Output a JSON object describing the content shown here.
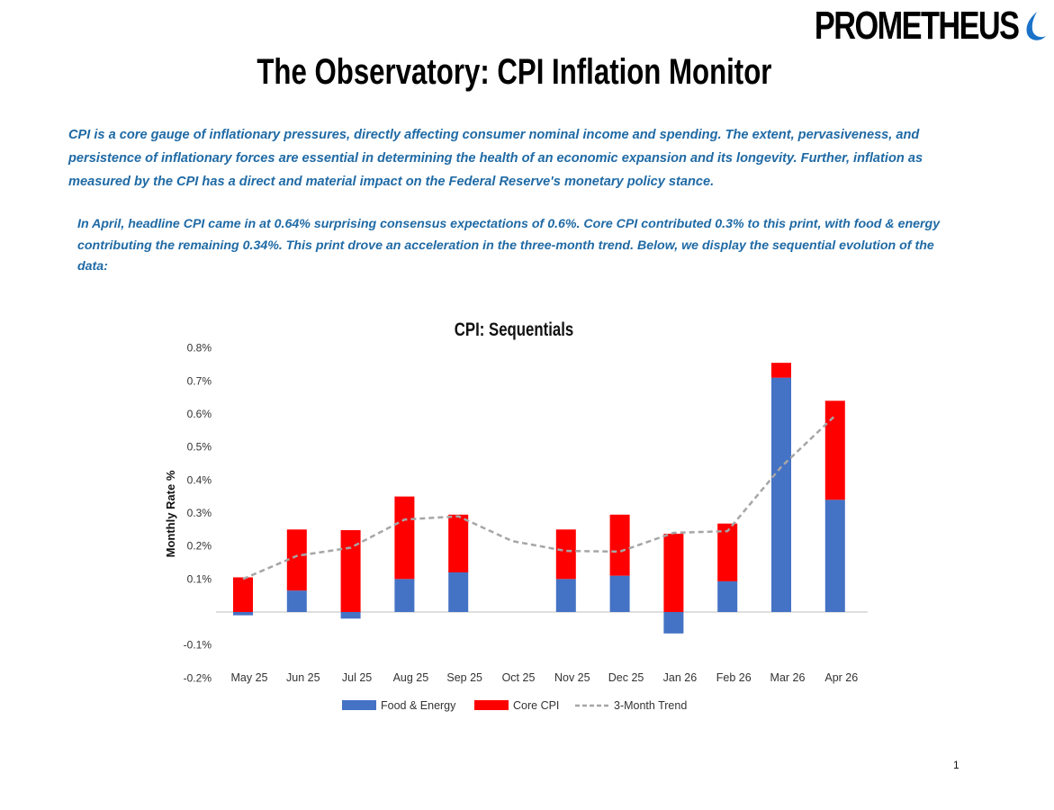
{
  "brand": {
    "name": "PROMETHEUS",
    "accent": "#1a73c8"
  },
  "title": "The Observatory: CPI Inflation Monitor",
  "intro": "CPI is a core gauge of inflationary pressures, directly affecting consumer nominal income and spending. The extent, pervasiveness, and persistence of inflationary forces are essential in determining the health of an economic expansion and its longevity. Further, inflation as measured by the CPI has a direct and material impact on the Federal Reserve's monetary policy stance.",
  "summary": "In April, headline CPI came in at 0.64% surprising  consensus expectations of 0.6%. Core CPI contributed 0.3% to this print, with food & energy contributing the remaining 0.34%. This print drove an acceleration in the three-month trend. Below, we display the sequential evolution of the data:",
  "text_color": "#1f6aa5",
  "page_number": "1",
  "chart_data": {
    "type": "bar",
    "stacked": true,
    "title": "CPI: Sequentials",
    "xlabel": "",
    "ylabel": "Monthly Rate %",
    "ylim": [
      -0.2,
      0.8
    ],
    "yticks": [
      0.8,
      0.7,
      0.6,
      0.5,
      0.4,
      0.3,
      0.2,
      0.1,
      -0.1,
      -0.2
    ],
    "ytick_labels": [
      "0.8%",
      "0.7%",
      "0.6%",
      "0.5%",
      "0.4%",
      "0.3%",
      "0.2%",
      "0.1%",
      "-0.1%",
      "-0.2%"
    ],
    "categories": [
      "May 25",
      "Jun 25",
      "Jul 25",
      "Aug 25",
      "Sep 25",
      "Oct 25",
      "Nov 25",
      "Dec 25",
      "Jan 26",
      "Feb 26",
      "Mar 26",
      "Apr 26"
    ],
    "series": [
      {
        "name": "Food & Energy",
        "kind": "bar",
        "color": "#4472c4",
        "values": [
          -0.01,
          0.065,
          -0.02,
          0.1,
          0.12,
          null,
          0.1,
          0.11,
          -0.065,
          0.093,
          0.71,
          0.34
        ]
      },
      {
        "name": "Core CPI",
        "kind": "bar",
        "color": "#ff0000",
        "values": [
          0.105,
          0.185,
          0.248,
          0.25,
          0.175,
          null,
          0.15,
          0.185,
          0.237,
          0.175,
          0.045,
          0.3
        ]
      },
      {
        "name": "3-Month Trend",
        "kind": "line",
        "color": "#a6a6a6",
        "values": [
          0.1,
          0.17,
          0.195,
          0.28,
          0.29,
          0.215,
          0.185,
          0.183,
          0.24,
          0.245,
          0.44,
          0.595
        ]
      }
    ],
    "legend": "bottom",
    "grid": false
  }
}
